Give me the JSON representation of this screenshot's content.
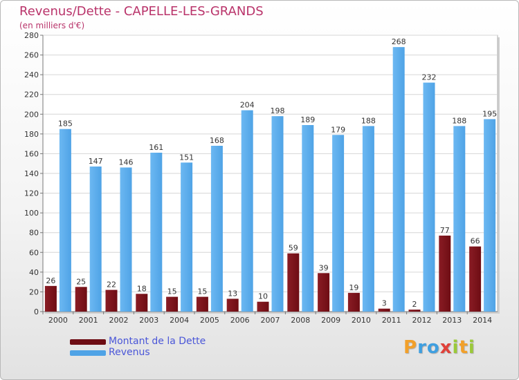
{
  "title": "Revenus/Dette - CAPELLE-LES-GRANDS",
  "subtitle": "(en milliers d'€)",
  "colors": {
    "dette": "#6e0d14",
    "revenus": "#4fa3e6",
    "title": "#b9336a",
    "legend_text": "#4a56d8"
  },
  "logo": {
    "letters": [
      {
        "ch": "P",
        "color": "#f2a02a"
      },
      {
        "ch": "r",
        "color": "#3f9fe0"
      },
      {
        "ch": "o",
        "color": "#3f9fe0"
      },
      {
        "ch": "x",
        "color": "#e0413a"
      },
      {
        "ch": "i",
        "color": "#9bc93a"
      },
      {
        "ch": "t",
        "color": "#f2a02a"
      },
      {
        "ch": "i",
        "color": "#9bc93a"
      }
    ]
  },
  "chart_data": {
    "type": "bar",
    "title": "Revenus/Dette - CAPELLE-LES-GRANDS",
    "subtitle": "(en milliers d'€)",
    "categories": [
      "2000",
      "2001",
      "2002",
      "2003",
      "2004",
      "2005",
      "2006",
      "2007",
      "2008",
      "2009",
      "2010",
      "2011",
      "2012",
      "2013",
      "2014"
    ],
    "series": [
      {
        "name": "Montant de la Dette",
        "color": "#6e0d14",
        "values": [
          26,
          25,
          22,
          18,
          15,
          15,
          13,
          10,
          59,
          39,
          19,
          3,
          2,
          77,
          66
        ]
      },
      {
        "name": "Revenus",
        "color": "#4fa3e6",
        "values": [
          185,
          147,
          146,
          161,
          151,
          168,
          204,
          198,
          189,
          179,
          188,
          268,
          232,
          188,
          195
        ]
      }
    ],
    "ylim": [
      0,
      280
    ],
    "yticks": [
      0,
      20,
      40,
      60,
      80,
      100,
      120,
      140,
      160,
      180,
      200,
      220,
      240,
      260,
      280
    ],
    "grid": true,
    "legend": "bottom-left",
    "data_labels": true
  }
}
